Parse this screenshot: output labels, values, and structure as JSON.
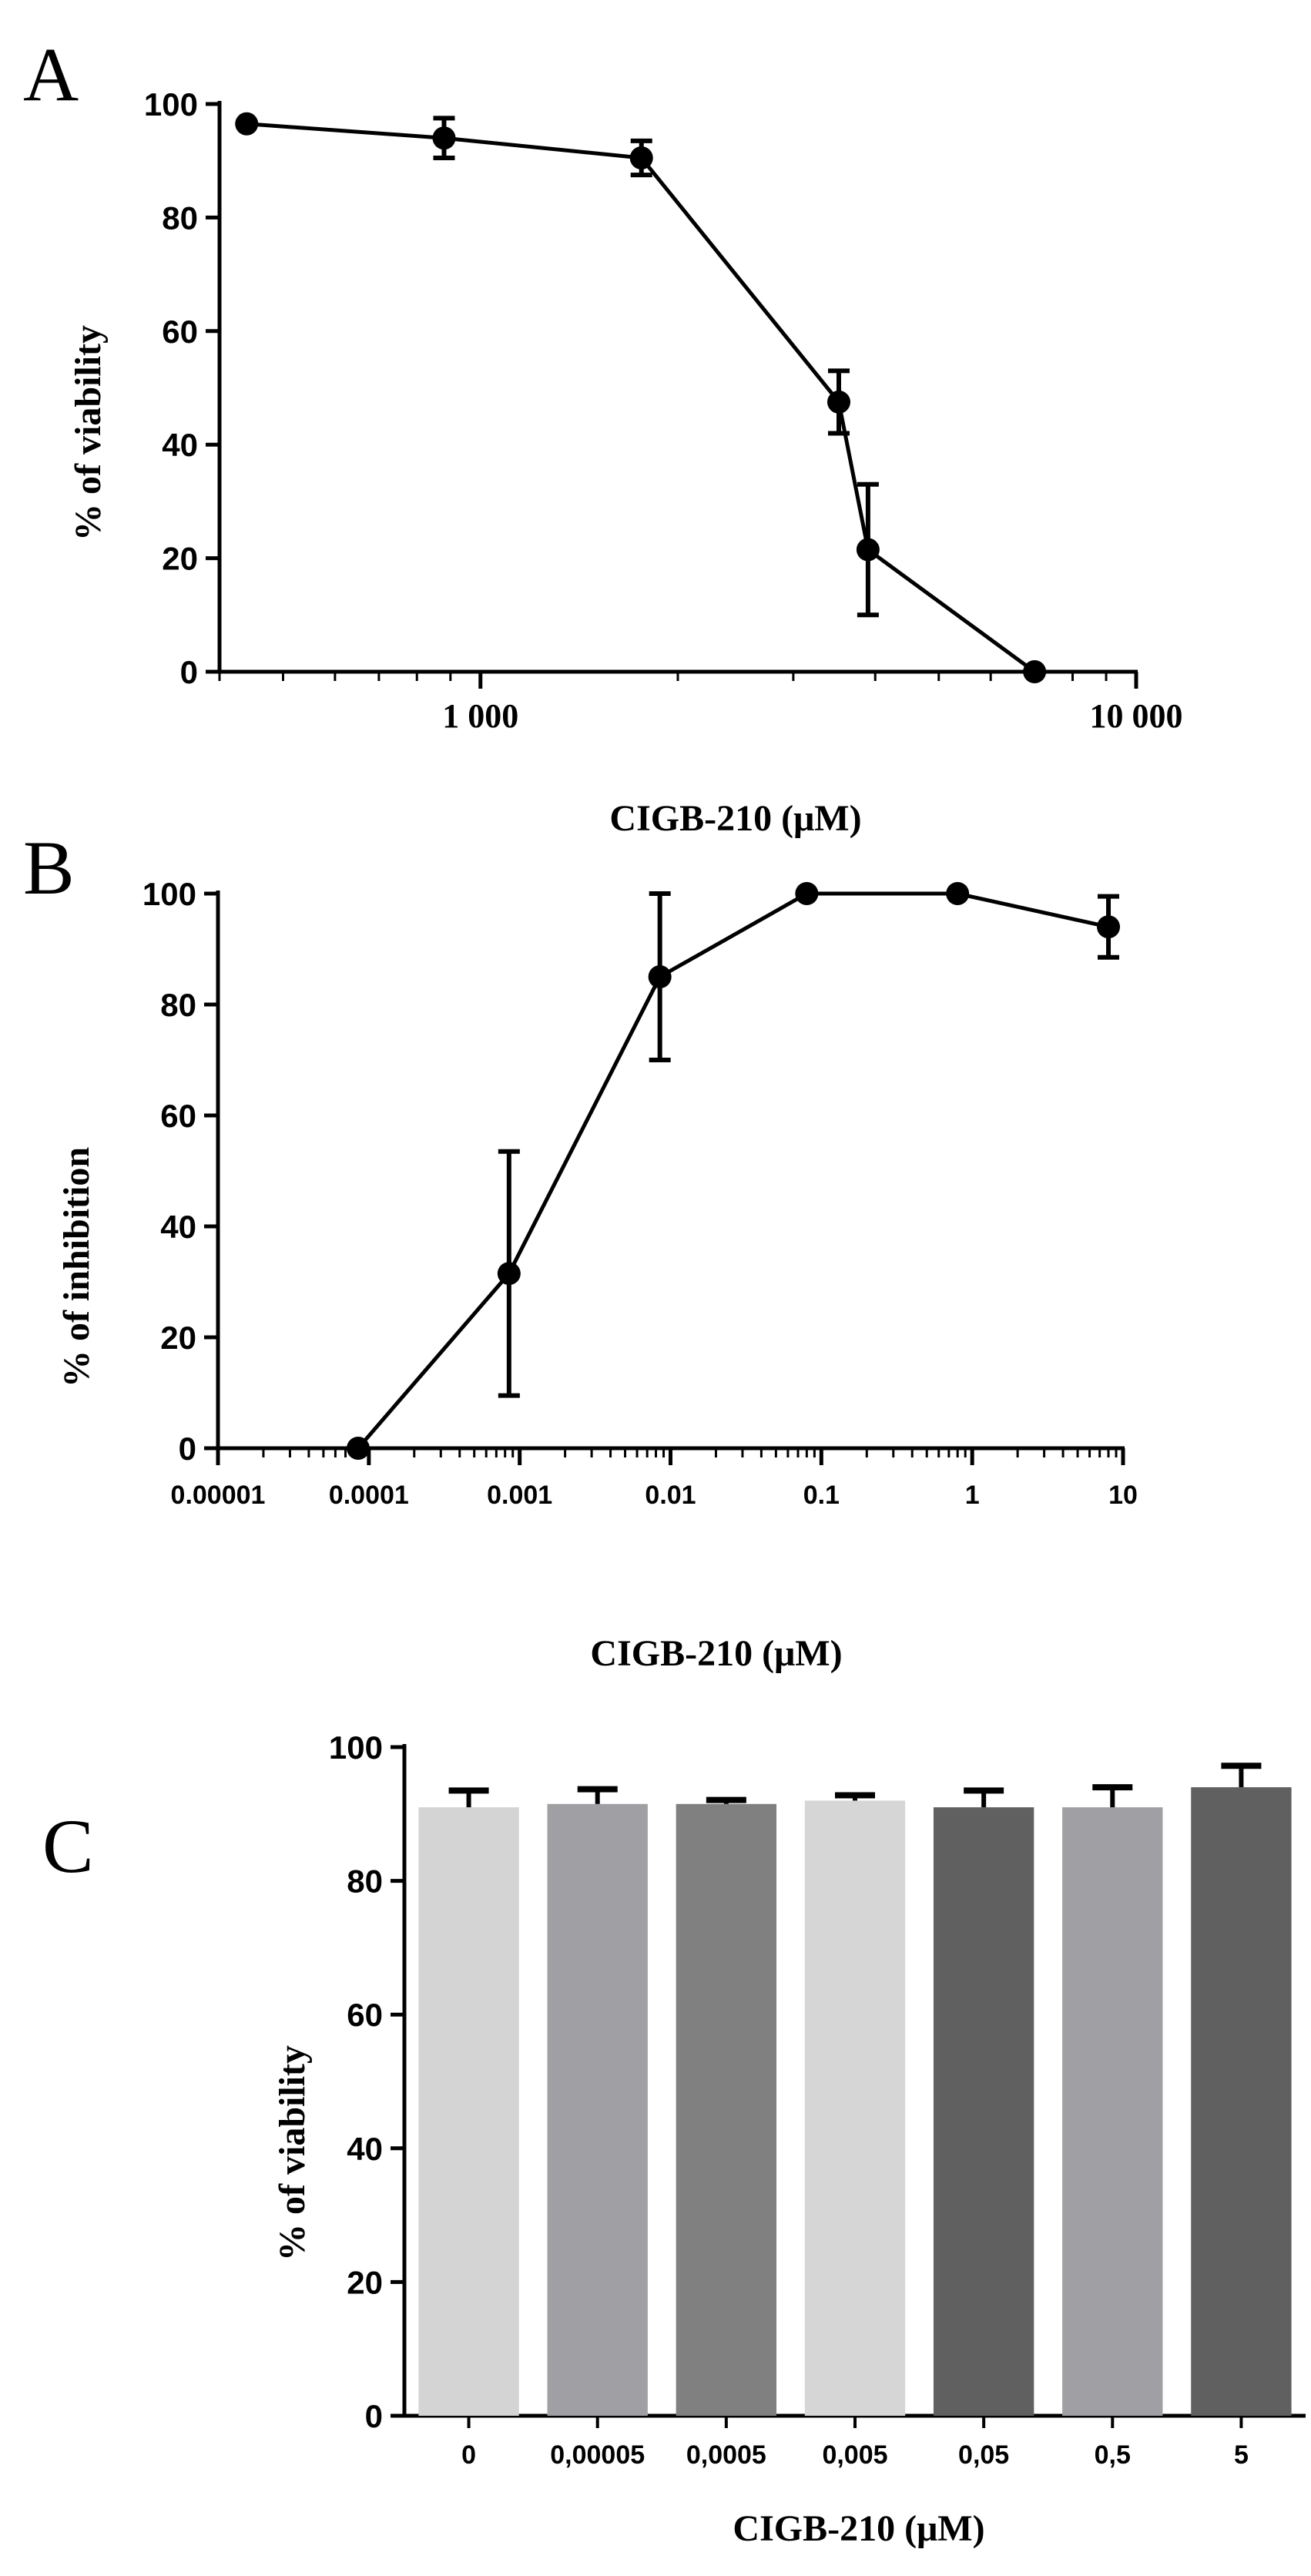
{
  "chart_data": [
    {
      "panel": "A",
      "type": "line",
      "xscale": "log",
      "xlim": [
        400,
        10000
      ],
      "ylim": [
        0,
        100
      ],
      "xlabel": "CIGB-210 (μM)",
      "ylabel": "% of viability",
      "xticks": [
        {
          "value": 1000,
          "label": "1 000"
        },
        {
          "value": 10000,
          "label": "10 000"
        }
      ],
      "yticks": [
        {
          "value": 0,
          "label": "0"
        },
        {
          "value": 20,
          "label": "20"
        },
        {
          "value": 40,
          "label": "40"
        },
        {
          "value": 60,
          "label": "60"
        },
        {
          "value": 80,
          "label": "80"
        },
        {
          "value": 100,
          "label": "100"
        }
      ],
      "points": [
        {
          "x": 440,
          "y": 96.5,
          "err": 0
        },
        {
          "x": 880,
          "y": 94,
          "err": 3.5
        },
        {
          "x": 1760,
          "y": 90.5,
          "err": 3
        },
        {
          "x": 3520,
          "y": 47.5,
          "err": 5.5
        },
        {
          "x": 3900,
          "y": 21.5,
          "err": 11.5
        },
        {
          "x": 7000,
          "y": 0,
          "err": 0
        }
      ],
      "grid": false
    },
    {
      "panel": "B",
      "type": "line",
      "xscale": "log",
      "xlim": [
        1e-05,
        10
      ],
      "ylim": [
        0,
        100
      ],
      "xlabel": "CIGB-210 (μM)",
      "ylabel": "% of inhibition",
      "xticks": [
        {
          "value": 1e-05,
          "label": "0.00001"
        },
        {
          "value": 0.0001,
          "label": "0.0001"
        },
        {
          "value": 0.001,
          "label": "0.001"
        },
        {
          "value": 0.01,
          "label": "0.01"
        },
        {
          "value": 0.1,
          "label": "0.1"
        },
        {
          "value": 1,
          "label": "1"
        },
        {
          "value": 10,
          "label": "10"
        }
      ],
      "yticks": [
        {
          "value": 0,
          "label": "0"
        },
        {
          "value": 20,
          "label": "20"
        },
        {
          "value": 40,
          "label": "40"
        },
        {
          "value": 60,
          "label": "60"
        },
        {
          "value": 80,
          "label": "80"
        },
        {
          "value": 100,
          "label": "100"
        }
      ],
      "points": [
        {
          "x": 8.5e-05,
          "y": 0,
          "err": 0
        },
        {
          "x": 0.00085,
          "y": 31.5,
          "err": 22
        },
        {
          "x": 0.0085,
          "y": 85,
          "err": 15
        },
        {
          "x": 0.08,
          "y": 100,
          "err": 0
        },
        {
          "x": 0.8,
          "y": 100,
          "err": 0
        },
        {
          "x": 8,
          "y": 94,
          "err": 5.5
        }
      ],
      "grid": false
    },
    {
      "panel": "C",
      "type": "bar",
      "ylim": [
        0,
        100
      ],
      "xlabel": "CIGB-210 (μM)",
      "ylabel": "% of viability",
      "yticks": [
        {
          "value": 0,
          "label": "0"
        },
        {
          "value": 20,
          "label": "20"
        },
        {
          "value": 40,
          "label": "40"
        },
        {
          "value": 60,
          "label": "60"
        },
        {
          "value": 80,
          "label": "80"
        },
        {
          "value": 100,
          "label": "100"
        }
      ],
      "categories": [
        "0",
        "0,00005",
        "0,0005",
        "0,005",
        "0,05",
        "0,5",
        "5"
      ],
      "values": [
        91,
        91.5,
        91.5,
        92,
        91,
        91,
        94
      ],
      "errors": [
        2.5,
        2.2,
        0.6,
        0.8,
        2.5,
        3,
        3.2
      ],
      "colors": [
        "#d4d4d4",
        "#a0a0a4",
        "#808080",
        "#d6d6d6",
        "#606060",
        "#a0a0a4",
        "#606060"
      ],
      "grid": false
    }
  ]
}
